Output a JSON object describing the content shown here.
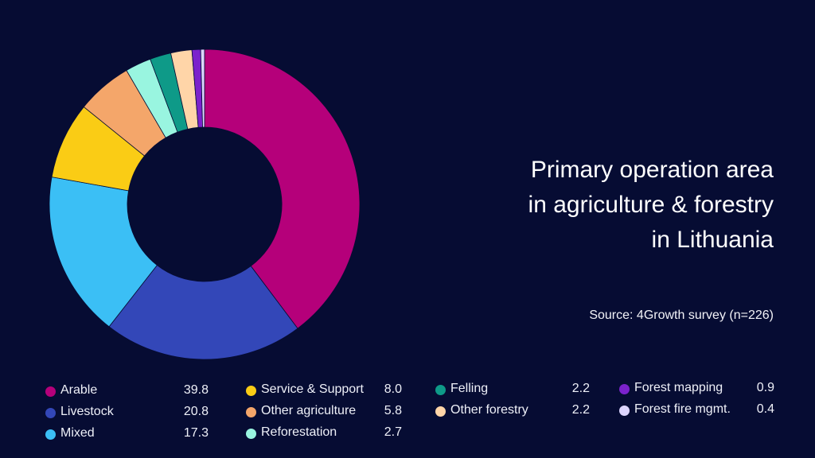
{
  "chart_data": {
    "type": "pie",
    "subtype": "donut",
    "title": [
      "Primary operation area",
      "in agriculture & forestry",
      "in Lithuania"
    ],
    "source": "Source: 4Growth survey (n=226)",
    "legend_position": "bottom",
    "slices": [
      {
        "label": "Arable",
        "value": 39.8,
        "value_text": "39.8",
        "color": "#b5007a"
      },
      {
        "label": "Livestock",
        "value": 20.8,
        "value_text": "20.8",
        "color": "#3347b8"
      },
      {
        "label": "Mixed",
        "value": 17.3,
        "value_text": "17.3",
        "color": "#3bbff5"
      },
      {
        "label": "Service & Support",
        "value": 8.0,
        "value_text": "8.0",
        "color": "#facc15"
      },
      {
        "label": "Other agriculture",
        "value": 5.8,
        "value_text": "5.8",
        "color": "#f4a66a"
      },
      {
        "label": "Reforestation",
        "value": 2.7,
        "value_text": "2.7",
        "color": "#99f5e0"
      },
      {
        "label": "Felling",
        "value": 2.2,
        "value_text": "2.2",
        "color": "#0e9a88"
      },
      {
        "label": "Other forestry",
        "value": 2.2,
        "value_text": "2.2",
        "color": "#ffd5a8"
      },
      {
        "label": "Forest  mapping",
        "value": 0.9,
        "value_text": "0.9",
        "color": "#7b22cc"
      },
      {
        "label": "Forest fire mgmt.",
        "value": 0.4,
        "value_text": "0.4",
        "color": "#ddd5ff"
      }
    ]
  }
}
